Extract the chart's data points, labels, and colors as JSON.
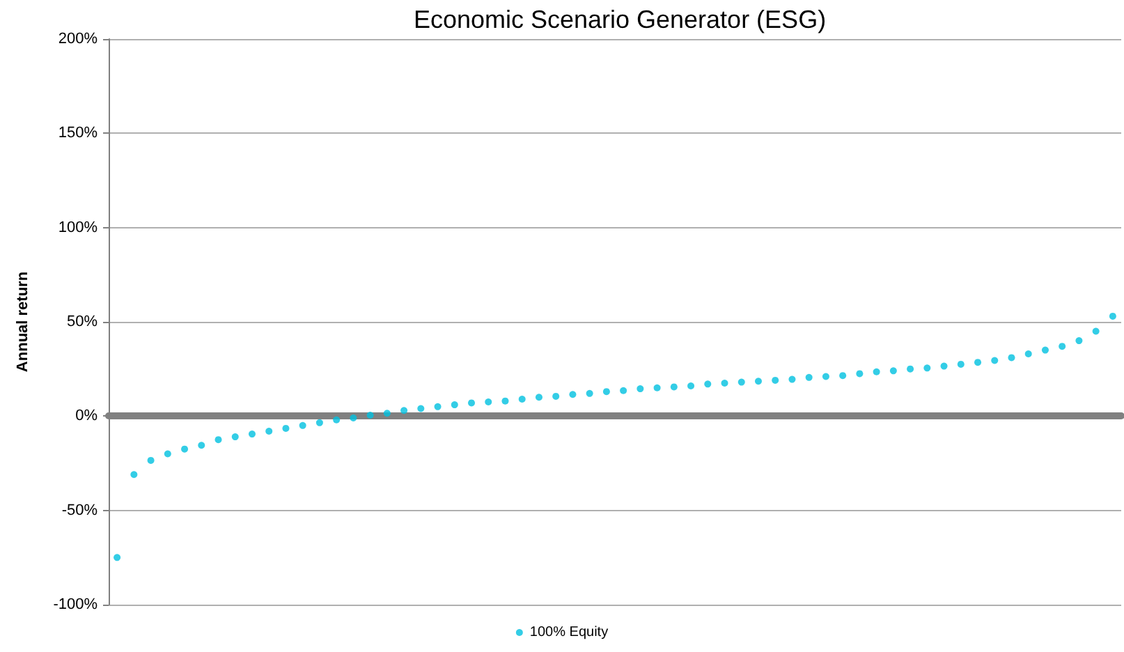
{
  "chart_data": {
    "type": "scatter",
    "title": "Economic Scenario Generator (ESG)",
    "ylabel": "Annual return",
    "categories": [
      null,
      null,
      null,
      null,
      null,
      null,
      null,
      null,
      null,
      null,
      null,
      null,
      null,
      null,
      null,
      null,
      null,
      null,
      null,
      null,
      null,
      null,
      null,
      null,
      null,
      null,
      null,
      null,
      null,
      null,
      null,
      null,
      null,
      null,
      null,
      null,
      null,
      null,
      null,
      null,
      null,
      null,
      null,
      null,
      null,
      null,
      null,
      null,
      null,
      null,
      null,
      null,
      null,
      null,
      null,
      null,
      null,
      null,
      null,
      null
    ],
    "ylim": [
      -100,
      200
    ],
    "yticks": [
      {
        "value": -100,
        "label": "-100%"
      },
      {
        "value": -50,
        "label": "-50%"
      },
      {
        "value": 0,
        "label": "0%"
      },
      {
        "value": 50,
        "label": "50%"
      },
      {
        "value": 100,
        "label": "100%"
      },
      {
        "value": 150,
        "label": "150%"
      },
      {
        "value": 200,
        "label": "200%"
      }
    ],
    "tick_labels": "y",
    "grid": "y",
    "legend": "bottom",
    "marker": "circle",
    "series": [
      {
        "name": "100% Equity",
        "color": "#00c0e0",
        "values": [
          -75,
          -31,
          -23.5,
          -20,
          -17.5,
          -15.5,
          -12.5,
          -11,
          -9.5,
          -8,
          -6.5,
          -5,
          -3.5,
          -2,
          -1,
          0.5,
          1.5,
          3,
          4,
          5,
          6,
          7,
          7.5,
          8,
          9,
          10,
          10.5,
          11.5,
          12,
          13,
          13.5,
          14.5,
          15,
          15.5,
          16,
          17,
          17.5,
          18,
          18.5,
          19,
          19.5,
          20.5,
          21,
          21.5,
          22.5,
          23.5,
          24,
          25,
          25.5,
          26.5,
          27.5,
          28.5,
          29.5,
          31,
          33,
          35,
          37,
          40,
          45,
          53
        ]
      }
    ]
  }
}
